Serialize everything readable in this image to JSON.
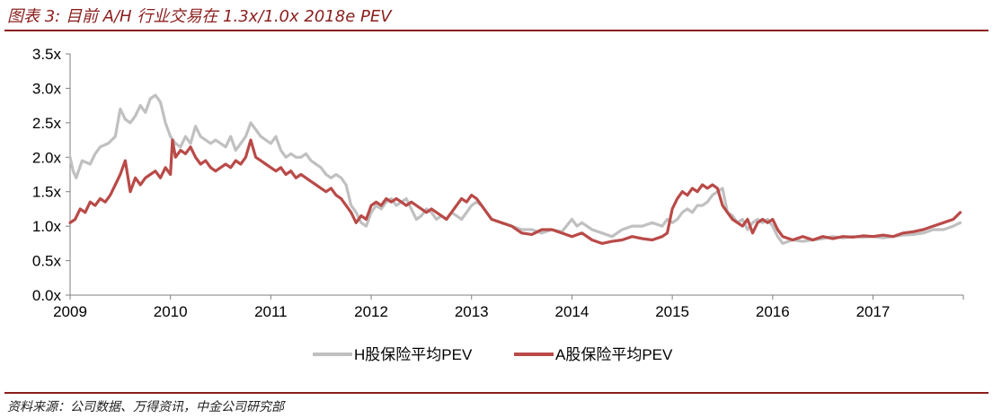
{
  "header": {
    "title": "图表 3: 目前 A/H 行业交易在 1.3x/1.0x 2018e PEV"
  },
  "footer": {
    "source": "资料来源：公司数据、万得资讯，中金公司研究部"
  },
  "chart_data": {
    "type": "line",
    "title": "图表 3: 目前 A/H 行业交易在 1.3x/1.0x 2018e PEV",
    "xlabel": "",
    "ylabel": "",
    "xlim": [
      2009.0,
      2017.9
    ],
    "ylim": [
      0.0,
      3.5
    ],
    "yticks": [
      0.0,
      0.5,
      1.0,
      1.5,
      2.0,
      2.5,
      3.0,
      3.5
    ],
    "ytick_labels": [
      "0.0x",
      "0.5x",
      "1.0x",
      "1.5x",
      "2.0x",
      "2.5x",
      "3.0x",
      "3.5x"
    ],
    "xticks": [
      2009,
      2010,
      2011,
      2012,
      2013,
      2014,
      2015,
      2016,
      2017
    ],
    "xtick_labels": [
      "2009",
      "2010",
      "2011",
      "2012",
      "2013",
      "2014",
      "2015",
      "2016",
      "2017"
    ],
    "grid": false,
    "legend_position": "bottom-center",
    "series": [
      {
        "name": "H股保险平均PEV",
        "color": "#c0c0c0",
        "x": [
          2009.0,
          2009.03,
          2009.06,
          2009.12,
          2009.2,
          2009.25,
          2009.3,
          2009.38,
          2009.45,
          2009.5,
          2009.55,
          2009.6,
          2009.65,
          2009.7,
          2009.75,
          2009.8,
          2009.85,
          2009.9,
          2009.95,
          2010.0,
          2010.05,
          2010.1,
          2010.15,
          2010.2,
          2010.25,
          2010.3,
          2010.35,
          2010.4,
          2010.45,
          2010.5,
          2010.55,
          2010.6,
          2010.65,
          2010.7,
          2010.75,
          2010.8,
          2010.85,
          2010.9,
          2010.95,
          2011.0,
          2011.05,
          2011.1,
          2011.15,
          2011.2,
          2011.25,
          2011.3,
          2011.35,
          2011.4,
          2011.45,
          2011.5,
          2011.55,
          2011.6,
          2011.65,
          2011.7,
          2011.75,
          2011.8,
          2011.85,
          2011.9,
          2011.95,
          2012.0,
          2012.05,
          2012.1,
          2012.15,
          2012.2,
          2012.25,
          2012.3,
          2012.35,
          2012.4,
          2012.45,
          2012.5,
          2012.55,
          2012.6,
          2012.65,
          2012.7,
          2012.75,
          2012.8,
          2012.85,
          2012.9,
          2012.95,
          2013.0,
          2013.05,
          2013.1,
          2013.15,
          2013.2,
          2013.3,
          2013.4,
          2013.5,
          2013.6,
          2013.7,
          2013.8,
          2013.9,
          2014.0,
          2014.05,
          2014.1,
          2014.2,
          2014.3,
          2014.4,
          2014.5,
          2014.6,
          2014.7,
          2014.8,
          2014.9,
          2014.95,
          2015.0,
          2015.05,
          2015.1,
          2015.15,
          2015.2,
          2015.25,
          2015.3,
          2015.35,
          2015.4,
          2015.45,
          2015.5,
          2015.55,
          2015.6,
          2015.65,
          2015.7,
          2015.75,
          2015.8,
          2015.85,
          2015.9,
          2015.95,
          2016.0,
          2016.05,
          2016.1,
          2016.2,
          2016.3,
          2016.4,
          2016.5,
          2016.6,
          2016.7,
          2016.8,
          2016.9,
          2017.0,
          2017.1,
          2017.2,
          2017.3,
          2017.4,
          2017.5,
          2017.6,
          2017.7,
          2017.8,
          2017.87
        ],
        "values": [
          2.0,
          1.8,
          1.7,
          1.95,
          1.9,
          2.05,
          2.15,
          2.2,
          2.3,
          2.7,
          2.55,
          2.5,
          2.6,
          2.75,
          2.65,
          2.85,
          2.9,
          2.8,
          2.5,
          2.3,
          2.2,
          2.15,
          2.3,
          2.2,
          2.45,
          2.3,
          2.25,
          2.2,
          2.25,
          2.2,
          2.15,
          2.3,
          2.1,
          2.2,
          2.3,
          2.5,
          2.4,
          2.3,
          2.25,
          2.2,
          2.3,
          2.1,
          2.0,
          2.05,
          2.0,
          2.0,
          2.05,
          1.95,
          1.9,
          1.85,
          1.75,
          1.7,
          1.75,
          1.7,
          1.6,
          1.3,
          1.2,
          1.05,
          1.0,
          1.2,
          1.3,
          1.25,
          1.35,
          1.4,
          1.3,
          1.35,
          1.4,
          1.25,
          1.1,
          1.15,
          1.25,
          1.2,
          1.1,
          1.15,
          1.1,
          1.2,
          1.15,
          1.1,
          1.2,
          1.3,
          1.35,
          1.3,
          1.2,
          1.1,
          1.05,
          1.0,
          0.95,
          0.95,
          0.9,
          0.95,
          0.92,
          1.1,
          1.0,
          1.05,
          0.95,
          0.9,
          0.85,
          0.95,
          1.0,
          1.0,
          1.05,
          1.0,
          1.1,
          1.05,
          1.1,
          1.2,
          1.25,
          1.2,
          1.3,
          1.3,
          1.35,
          1.45,
          1.5,
          1.55,
          1.2,
          1.15,
          1.05,
          1.1,
          0.95,
          1.05,
          1.1,
          1.05,
          1.1,
          1.0,
          0.85,
          0.75,
          0.8,
          0.78,
          0.8,
          0.82,
          0.85,
          0.83,
          0.85,
          0.84,
          0.85,
          0.83,
          0.85,
          0.87,
          0.88,
          0.9,
          0.95,
          0.95,
          1.0,
          1.05
        ]
      },
      {
        "name": "A股保险平均PEV",
        "color": "#b94a48",
        "x": [
          2009.0,
          2009.05,
          2009.1,
          2009.15,
          2009.2,
          2009.25,
          2009.3,
          2009.35,
          2009.4,
          2009.45,
          2009.5,
          2009.55,
          2009.6,
          2009.65,
          2009.7,
          2009.75,
          2009.8,
          2009.85,
          2009.9,
          2009.95,
          2010.0,
          2010.02,
          2010.05,
          2010.1,
          2010.15,
          2010.2,
          2010.25,
          2010.3,
          2010.35,
          2010.4,
          2010.45,
          2010.5,
          2010.55,
          2010.6,
          2010.65,
          2010.7,
          2010.75,
          2010.8,
          2010.85,
          2010.9,
          2010.95,
          2011.0,
          2011.05,
          2011.1,
          2011.15,
          2011.2,
          2011.25,
          2011.3,
          2011.35,
          2011.4,
          2011.45,
          2011.5,
          2011.55,
          2011.6,
          2011.65,
          2011.7,
          2011.75,
          2011.8,
          2011.85,
          2011.9,
          2011.95,
          2012.0,
          2012.05,
          2012.1,
          2012.15,
          2012.2,
          2012.25,
          2012.3,
          2012.35,
          2012.4,
          2012.45,
          2012.5,
          2012.55,
          2012.6,
          2012.65,
          2012.7,
          2012.75,
          2012.8,
          2012.85,
          2012.9,
          2012.95,
          2013.0,
          2013.05,
          2013.1,
          2013.15,
          2013.2,
          2013.3,
          2013.4,
          2013.5,
          2013.6,
          2013.7,
          2013.8,
          2013.9,
          2014.0,
          2014.1,
          2014.2,
          2014.3,
          2014.4,
          2014.5,
          2014.6,
          2014.7,
          2014.8,
          2014.9,
          2014.95,
          2015.0,
          2015.05,
          2015.1,
          2015.15,
          2015.2,
          2015.25,
          2015.3,
          2015.35,
          2015.4,
          2015.45,
          2015.5,
          2015.55,
          2015.6,
          2015.65,
          2015.7,
          2015.75,
          2015.8,
          2015.85,
          2015.9,
          2015.95,
          2016.0,
          2016.05,
          2016.1,
          2016.2,
          2016.3,
          2016.4,
          2016.5,
          2016.6,
          2016.7,
          2016.8,
          2016.9,
          2017.0,
          2017.1,
          2017.2,
          2017.3,
          2017.4,
          2017.5,
          2017.6,
          2017.7,
          2017.8,
          2017.87
        ],
        "values": [
          1.05,
          1.1,
          1.25,
          1.2,
          1.35,
          1.3,
          1.4,
          1.35,
          1.45,
          1.6,
          1.75,
          1.95,
          1.5,
          1.7,
          1.6,
          1.7,
          1.75,
          1.8,
          1.7,
          1.85,
          1.75,
          2.25,
          2.0,
          2.1,
          2.05,
          2.15,
          2.0,
          1.9,
          1.95,
          1.85,
          1.8,
          1.85,
          1.9,
          1.85,
          1.95,
          1.9,
          2.0,
          2.25,
          2.0,
          1.95,
          1.9,
          1.85,
          1.8,
          1.85,
          1.75,
          1.8,
          1.7,
          1.75,
          1.7,
          1.65,
          1.6,
          1.55,
          1.5,
          1.55,
          1.45,
          1.4,
          1.3,
          1.2,
          1.05,
          1.15,
          1.1,
          1.3,
          1.35,
          1.3,
          1.4,
          1.35,
          1.4,
          1.35,
          1.3,
          1.35,
          1.3,
          1.25,
          1.2,
          1.25,
          1.2,
          1.15,
          1.1,
          1.2,
          1.3,
          1.4,
          1.35,
          1.45,
          1.4,
          1.3,
          1.2,
          1.1,
          1.05,
          1.0,
          0.9,
          0.88,
          0.95,
          0.95,
          0.9,
          0.85,
          0.9,
          0.8,
          0.75,
          0.78,
          0.8,
          0.85,
          0.82,
          0.8,
          0.85,
          0.9,
          1.25,
          1.4,
          1.5,
          1.45,
          1.55,
          1.5,
          1.6,
          1.55,
          1.6,
          1.55,
          1.3,
          1.2,
          1.1,
          1.05,
          1.0,
          1.1,
          0.9,
          1.05,
          1.1,
          1.05,
          1.1,
          0.95,
          0.85,
          0.8,
          0.85,
          0.8,
          0.85,
          0.82,
          0.85,
          0.84,
          0.86,
          0.85,
          0.87,
          0.85,
          0.9,
          0.92,
          0.95,
          1.0,
          1.05,
          1.1,
          1.2
        ]
      }
    ]
  }
}
